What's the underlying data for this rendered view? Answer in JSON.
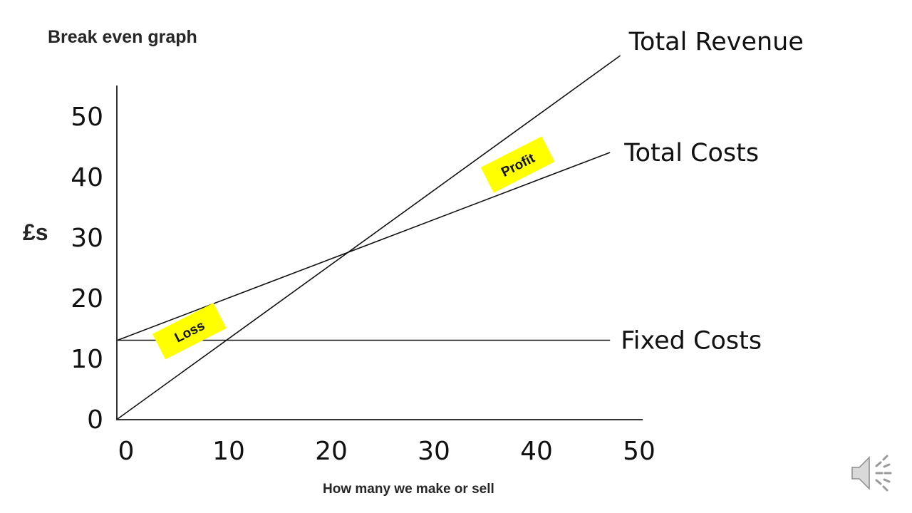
{
  "slide": {
    "title": "Break even graph"
  },
  "chart_data": {
    "type": "line",
    "title": "Break even graph",
    "xlabel": "How many we make or sell",
    "ylabel": "£s",
    "xlim": [
      0,
      50
    ],
    "ylim": [
      0,
      50
    ],
    "xticks": [
      "0",
      "10",
      "20",
      "30",
      "40",
      "50"
    ],
    "yticks": [
      "0",
      "10",
      "20",
      "30",
      "40",
      "50"
    ],
    "grid": false,
    "series": [
      {
        "name": "Total Revenue",
        "x": [
          0,
          49
        ],
        "y": [
          0,
          60
        ],
        "color": "#111111"
      },
      {
        "name": "Total Costs",
        "x": [
          0,
          48
        ],
        "y": [
          13,
          44
        ],
        "color": "#111111"
      },
      {
        "name": "Fixed Costs",
        "x": [
          0,
          48
        ],
        "y": [
          13,
          13
        ],
        "color": "#111111"
      }
    ],
    "annotations": [
      {
        "text": "Loss",
        "x": 7,
        "y": 14.5,
        "background": "#ffff00"
      },
      {
        "text": "Profit",
        "x": 39,
        "y": 42,
        "background": "#ffff00"
      }
    ]
  },
  "icons": {
    "audio": "speaker-icon"
  }
}
